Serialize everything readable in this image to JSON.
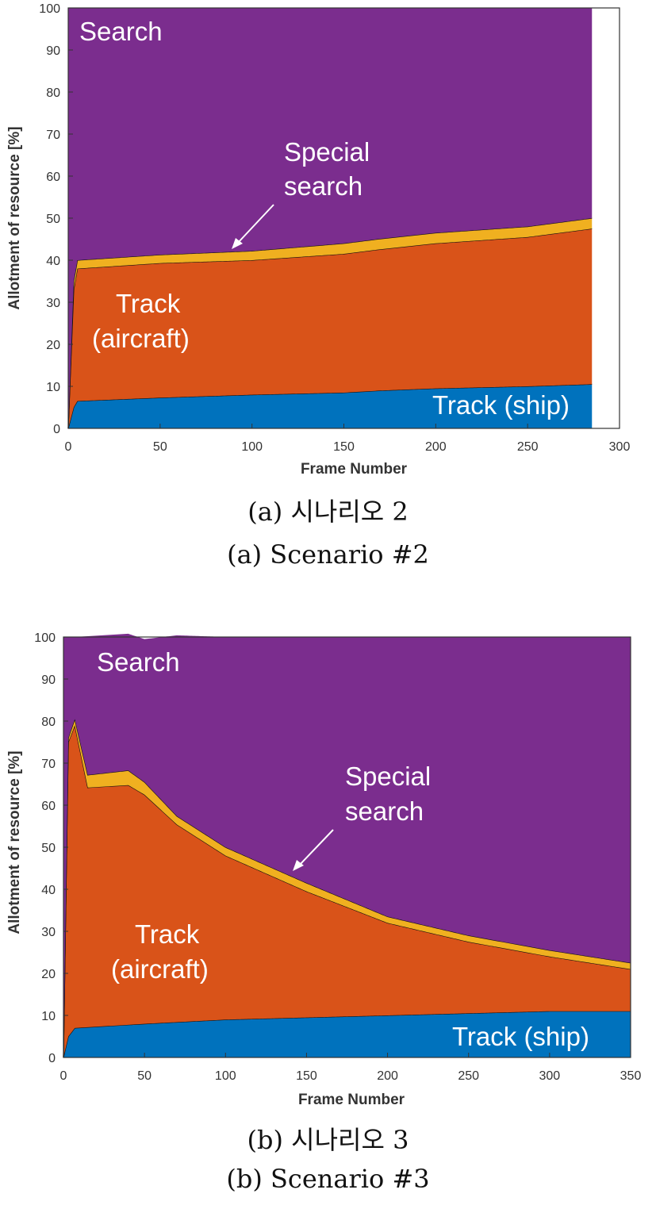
{
  "colors": {
    "search": "#7B2D8E",
    "special": "#F0B020",
    "aircraft": "#D95319",
    "ship": "#0072BD"
  },
  "chart_data": [
    {
      "type": "area",
      "stacked": true,
      "xlabel": "Frame Number",
      "ylabel": "Allotment of resource [%]",
      "xlim": [
        0,
        300
      ],
      "ylim": [
        0,
        100
      ],
      "xticks": [
        "0",
        "50",
        "100",
        "150",
        "200",
        "250",
        "300"
      ],
      "yticks": [
        "0",
        "10",
        "20",
        "30",
        "40",
        "50",
        "60",
        "70",
        "80",
        "90",
        "100"
      ],
      "x_end": 285,
      "labels": {
        "search": "Search",
        "special_line1": "Special",
        "special_line2": "search",
        "aircraft_line1": "Track",
        "aircraft_line2": "(aircraft)",
        "ship": "Track (ship)"
      },
      "series": [
        {
          "name": "Track (ship)",
          "x": [
            0,
            3,
            5,
            50,
            100,
            150,
            170,
            200,
            250,
            285
          ],
          "values": [
            0,
            5,
            6.5,
            7.3,
            8,
            8.5,
            9,
            9.5,
            10,
            10.5
          ]
        },
        {
          "name": "Track (aircraft)",
          "x": [
            0,
            3,
            5,
            50,
            100,
            150,
            200,
            250,
            285
          ],
          "values": [
            0,
            28,
            31.5,
            32,
            32,
            33,
            34.5,
            35.5,
            37
          ]
        },
        {
          "name": "Special search",
          "x": [
            0,
            3,
            5,
            50,
            100,
            150,
            200,
            250,
            285
          ],
          "values": [
            0,
            2,
            2,
            2,
            2.2,
            2.5,
            2.5,
            2.5,
            2.5
          ]
        },
        {
          "name": "Search",
          "x": [
            0,
            3,
            5,
            50,
            100,
            150,
            200,
            250,
            285
          ],
          "values": [
            100,
            65,
            60,
            58.7,
            57.8,
            56,
            53.5,
            52,
            50
          ]
        }
      ],
      "caption_ko": "(a)  시나리오  2",
      "caption_en": "(a)  Scenario  #2"
    },
    {
      "type": "area",
      "stacked": true,
      "xlabel": "Frame Number",
      "ylabel": "Allotment of resource [%]",
      "xlim": [
        0,
        350
      ],
      "ylim": [
        0,
        100
      ],
      "xticks": [
        "0",
        "50",
        "100",
        "150",
        "200",
        "250",
        "300",
        "350"
      ],
      "yticks": [
        "0",
        "10",
        "20",
        "30",
        "40",
        "50",
        "60",
        "70",
        "80",
        "90",
        "100"
      ],
      "x_end": 350,
      "labels": {
        "search": "Search",
        "special_line1": "Special",
        "special_line2": "search",
        "aircraft_line1": "Track",
        "aircraft_line2": "(aircraft)",
        "ship": "Track (ship)"
      },
      "series": [
        {
          "name": "Track (ship)",
          "x": [
            0,
            3,
            7,
            50,
            100,
            150,
            200,
            250,
            300,
            350
          ],
          "values": [
            0,
            5,
            7,
            8,
            9,
            9.5,
            10,
            10.5,
            11,
            11
          ]
        },
        {
          "name": "Track (aircraft)",
          "x": [
            0,
            3,
            7,
            15,
            40,
            50,
            70,
            100,
            150,
            200,
            250,
            300,
            350
          ],
          "values": [
            0,
            70,
            72,
            57,
            57,
            54.5,
            47,
            39,
            30,
            22,
            17,
            13,
            10
          ]
        },
        {
          "name": "Special search",
          "x": [
            0,
            3,
            7,
            15,
            40,
            50,
            70,
            100,
            150,
            200,
            250,
            300,
            350
          ],
          "values": [
            0,
            1,
            1.5,
            3,
            3.5,
            3,
            2,
            2,
            2,
            1.5,
            1.5,
            1.5,
            1.5
          ]
        },
        {
          "name": "Search",
          "x": [
            0,
            3,
            7,
            15,
            40,
            50,
            70,
            100,
            150,
            200,
            250,
            300,
            350
          ],
          "values": [
            100,
            24,
            19.5,
            33,
            32.5,
            34,
            43,
            50,
            58.5,
            66.5,
            71,
            74.5,
            77.5
          ]
        }
      ],
      "caption_ko": "(b)  시나리오  3",
      "caption_en": "(b)  Scenario  #3"
    }
  ]
}
